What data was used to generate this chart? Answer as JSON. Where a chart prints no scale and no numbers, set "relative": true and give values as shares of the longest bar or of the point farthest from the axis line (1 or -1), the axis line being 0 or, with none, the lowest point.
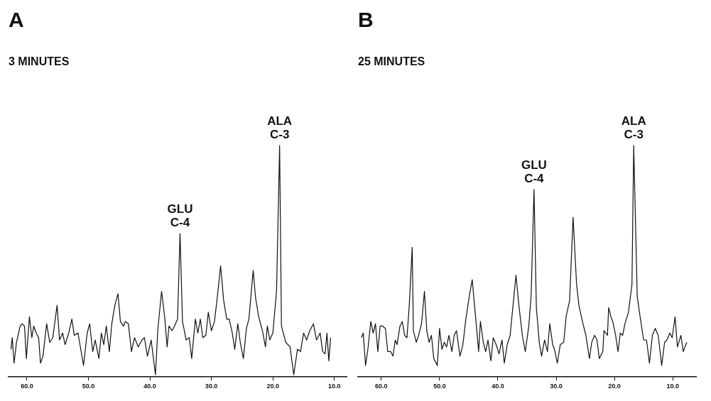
{
  "chart_data": [
    {
      "type": "line",
      "title": "A",
      "subtitle": "3 MINUTES",
      "relative": true,
      "xlim": [
        63,
        8
      ],
      "xticks": [
        {
          "value": 60,
          "label": "60.0"
        },
        {
          "value": 50,
          "label": "50.0"
        },
        {
          "value": 40,
          "label": "40.0"
        },
        {
          "value": 30,
          "label": "30.0"
        },
        {
          "value": 20,
          "label": "20.0"
        },
        {
          "value": 10,
          "label": "10.0"
        }
      ],
      "annotations": [
        {
          "text": "GLU\nC-4",
          "x": 35.1,
          "y": 0.62
        },
        {
          "text": "ALA\nC-3",
          "x": 18.9,
          "y": 1.0
        }
      ],
      "series": [
        {
          "color": "#111111",
          "x": [
            62.6,
            62.4,
            62.1,
            61.7,
            61.1,
            60.8,
            60.4,
            60.1,
            59.6,
            59.2,
            58.9,
            58.5,
            58.1,
            57.8,
            57.4,
            56.8,
            56.3,
            55.8,
            55.5,
            55.1,
            54.7,
            54.2,
            53.8,
            53.2,
            52.7,
            52.3,
            51.7,
            50.8,
            50.2,
            49.8,
            49.3,
            48.9,
            48.3,
            47.9,
            47.5,
            47.1,
            46.6,
            46.2,
            45.7,
            45.2,
            44.8,
            44.3,
            44.0,
            43.5,
            43.0,
            42.5,
            41.9,
            41.3,
            40.9,
            40.4,
            39.8,
            39.1,
            38.7,
            38.1,
            37.6,
            37.2,
            36.9,
            36.4,
            36.0,
            35.5,
            35.1,
            34.7,
            34.1,
            33.6,
            33.2,
            32.6,
            32.2,
            31.8,
            31.4,
            30.9,
            30.5,
            30.0,
            29.5,
            29.1,
            28.5,
            28.0,
            27.5,
            27.1,
            26.6,
            26.2,
            25.7,
            25.3,
            24.8,
            24.3,
            23.9,
            23.2,
            22.8,
            22.3,
            21.7,
            21.2,
            20.9,
            20.5,
            20.0,
            19.4,
            18.9,
            18.6,
            17.9,
            17.2,
            16.6,
            16.0,
            15.5,
            15.0,
            14.5,
            14.0,
            13.4,
            12.9,
            12.3,
            11.9,
            11.5,
            11.2,
            10.9,
            10.6
          ],
          "values": [
            0.12,
            0.17,
            0.06,
            0.15,
            0.22,
            0.23,
            0.22,
            0.08,
            0.26,
            0.17,
            0.22,
            0.19,
            0.17,
            0.06,
            0.09,
            0.23,
            0.15,
            0.17,
            0.23,
            0.31,
            0.16,
            0.19,
            0.14,
            0.19,
            0.25,
            0.18,
            0.19,
            0.05,
            0.19,
            0.23,
            0.11,
            0.16,
            0.08,
            0.19,
            0.14,
            0.22,
            0.11,
            0.23,
            0.31,
            0.36,
            0.24,
            0.22,
            0.24,
            0.23,
            0.11,
            0.17,
            0.13,
            0.16,
            0.17,
            0.09,
            0.16,
            0.01,
            0.21,
            0.37,
            0.26,
            0.13,
            0.22,
            0.2,
            0.22,
            0.25,
            0.62,
            0.24,
            0.16,
            0.17,
            0.08,
            0.25,
            0.19,
            0.25,
            0.17,
            0.18,
            0.28,
            0.2,
            0.24,
            0.33,
            0.48,
            0.33,
            0.25,
            0.25,
            0.19,
            0.12,
            0.23,
            0.15,
            0.08,
            0.21,
            0.25,
            0.46,
            0.34,
            0.26,
            0.2,
            0.13,
            0.22,
            0.16,
            0.19,
            0.37,
            1.0,
            0.22,
            0.15,
            0.13,
            0.01,
            0.12,
            0.11,
            0.19,
            0.16,
            0.2,
            0.23,
            0.16,
            0.19,
            0.11,
            0.1,
            0.19,
            0.07,
            0.17
          ]
        }
      ]
    },
    {
      "type": "line",
      "title": "B",
      "subtitle": "25 MINUTES",
      "relative": true,
      "xlim": [
        64,
        6
      ],
      "xticks": [
        {
          "value": 60,
          "label": "60.0"
        },
        {
          "value": 50,
          "label": "50.0"
        },
        {
          "value": 40,
          "label": "40.0"
        },
        {
          "value": 30,
          "label": "30.0"
        },
        {
          "value": 20,
          "label": "20.0"
        },
        {
          "value": 10,
          "label": "10.0"
        }
      ],
      "annotations": [
        {
          "text": "GLU\nC-4",
          "x": 33.8,
          "y": 0.81
        },
        {
          "text": "ALA\nC-3",
          "x": 16.7,
          "y": 1.0
        }
      ],
      "series": [
        {
          "color": "#111111",
          "x": [
            63.4,
            63.1,
            62.7,
            62.3,
            61.8,
            61.4,
            61.0,
            60.6,
            60.2,
            59.8,
            59.3,
            58.9,
            58.4,
            58.0,
            57.6,
            57.3,
            56.8,
            56.4,
            56.0,
            55.6,
            55.2,
            54.7,
            54.5,
            54.0,
            53.6,
            53.1,
            52.6,
            52.2,
            51.8,
            51.4,
            51.0,
            50.4,
            50.0,
            49.6,
            49.2,
            48.8,
            48.4,
            47.9,
            47.5,
            47.1,
            46.5,
            46.0,
            45.5,
            44.9,
            44.4,
            43.9,
            43.3,
            43.0,
            42.5,
            42.1,
            41.7,
            41.2,
            40.8,
            40.3,
            39.8,
            39.3,
            38.9,
            38.4,
            37.9,
            37.4,
            36.9,
            36.4,
            35.8,
            35.3,
            34.7,
            34.3,
            33.8,
            33.4,
            32.9,
            32.5,
            32.0,
            31.5,
            31.1,
            30.6,
            30.3,
            29.8,
            29.3,
            28.7,
            28.3,
            27.7,
            27.1,
            26.5,
            26.1,
            25.5,
            24.9,
            24.3,
            23.9,
            23.4,
            23.0,
            22.6,
            22.0,
            21.8,
            21.2,
            21.0,
            20.6,
            20.3,
            19.8,
            19.4,
            19.0,
            18.6,
            18.2,
            17.6,
            17.0,
            16.7,
            16.1,
            15.6,
            15.0,
            14.5,
            14.0,
            13.5,
            13.0,
            12.5,
            11.9,
            11.4,
            11.0,
            10.5,
            10.1,
            9.6,
            9.2,
            8.6,
            8.2,
            7.6
          ],
          "values": [
            0.17,
            0.19,
            0.05,
            0.12,
            0.24,
            0.19,
            0.23,
            0.11,
            0.22,
            0.22,
            0.21,
            0.11,
            0.11,
            0.09,
            0.16,
            0.14,
            0.22,
            0.24,
            0.18,
            0.17,
            0.31,
            0.56,
            0.2,
            0.15,
            0.18,
            0.23,
            0.37,
            0.2,
            0.15,
            0.18,
            0.08,
            0.05,
            0.21,
            0.12,
            0.15,
            0.13,
            0.18,
            0.11,
            0.18,
            0.2,
            0.09,
            0.14,
            0.25,
            0.35,
            0.42,
            0.28,
            0.11,
            0.24,
            0.15,
            0.11,
            0.16,
            0.07,
            0.17,
            0.14,
            0.1,
            0.16,
            0.06,
            0.14,
            0.18,
            0.31,
            0.44,
            0.31,
            0.18,
            0.11,
            0.22,
            0.35,
            0.81,
            0.3,
            0.15,
            0.09,
            0.16,
            0.11,
            0.23,
            0.14,
            0.12,
            0.06,
            0.14,
            0.15,
            0.26,
            0.33,
            0.69,
            0.4,
            0.31,
            0.24,
            0.18,
            0.08,
            0.15,
            0.18,
            0.16,
            0.08,
            0.11,
            0.2,
            0.18,
            0.3,
            0.26,
            0.24,
            0.18,
            0.11,
            0.19,
            0.18,
            0.23,
            0.28,
            0.4,
            1.0,
            0.35,
            0.26,
            0.16,
            0.16,
            0.06,
            0.18,
            0.21,
            0.18,
            0.05,
            0.15,
            0.16,
            0.19,
            0.17,
            0.26,
            0.13,
            0.18,
            0.11,
            0.15
          ]
        }
      ]
    }
  ]
}
